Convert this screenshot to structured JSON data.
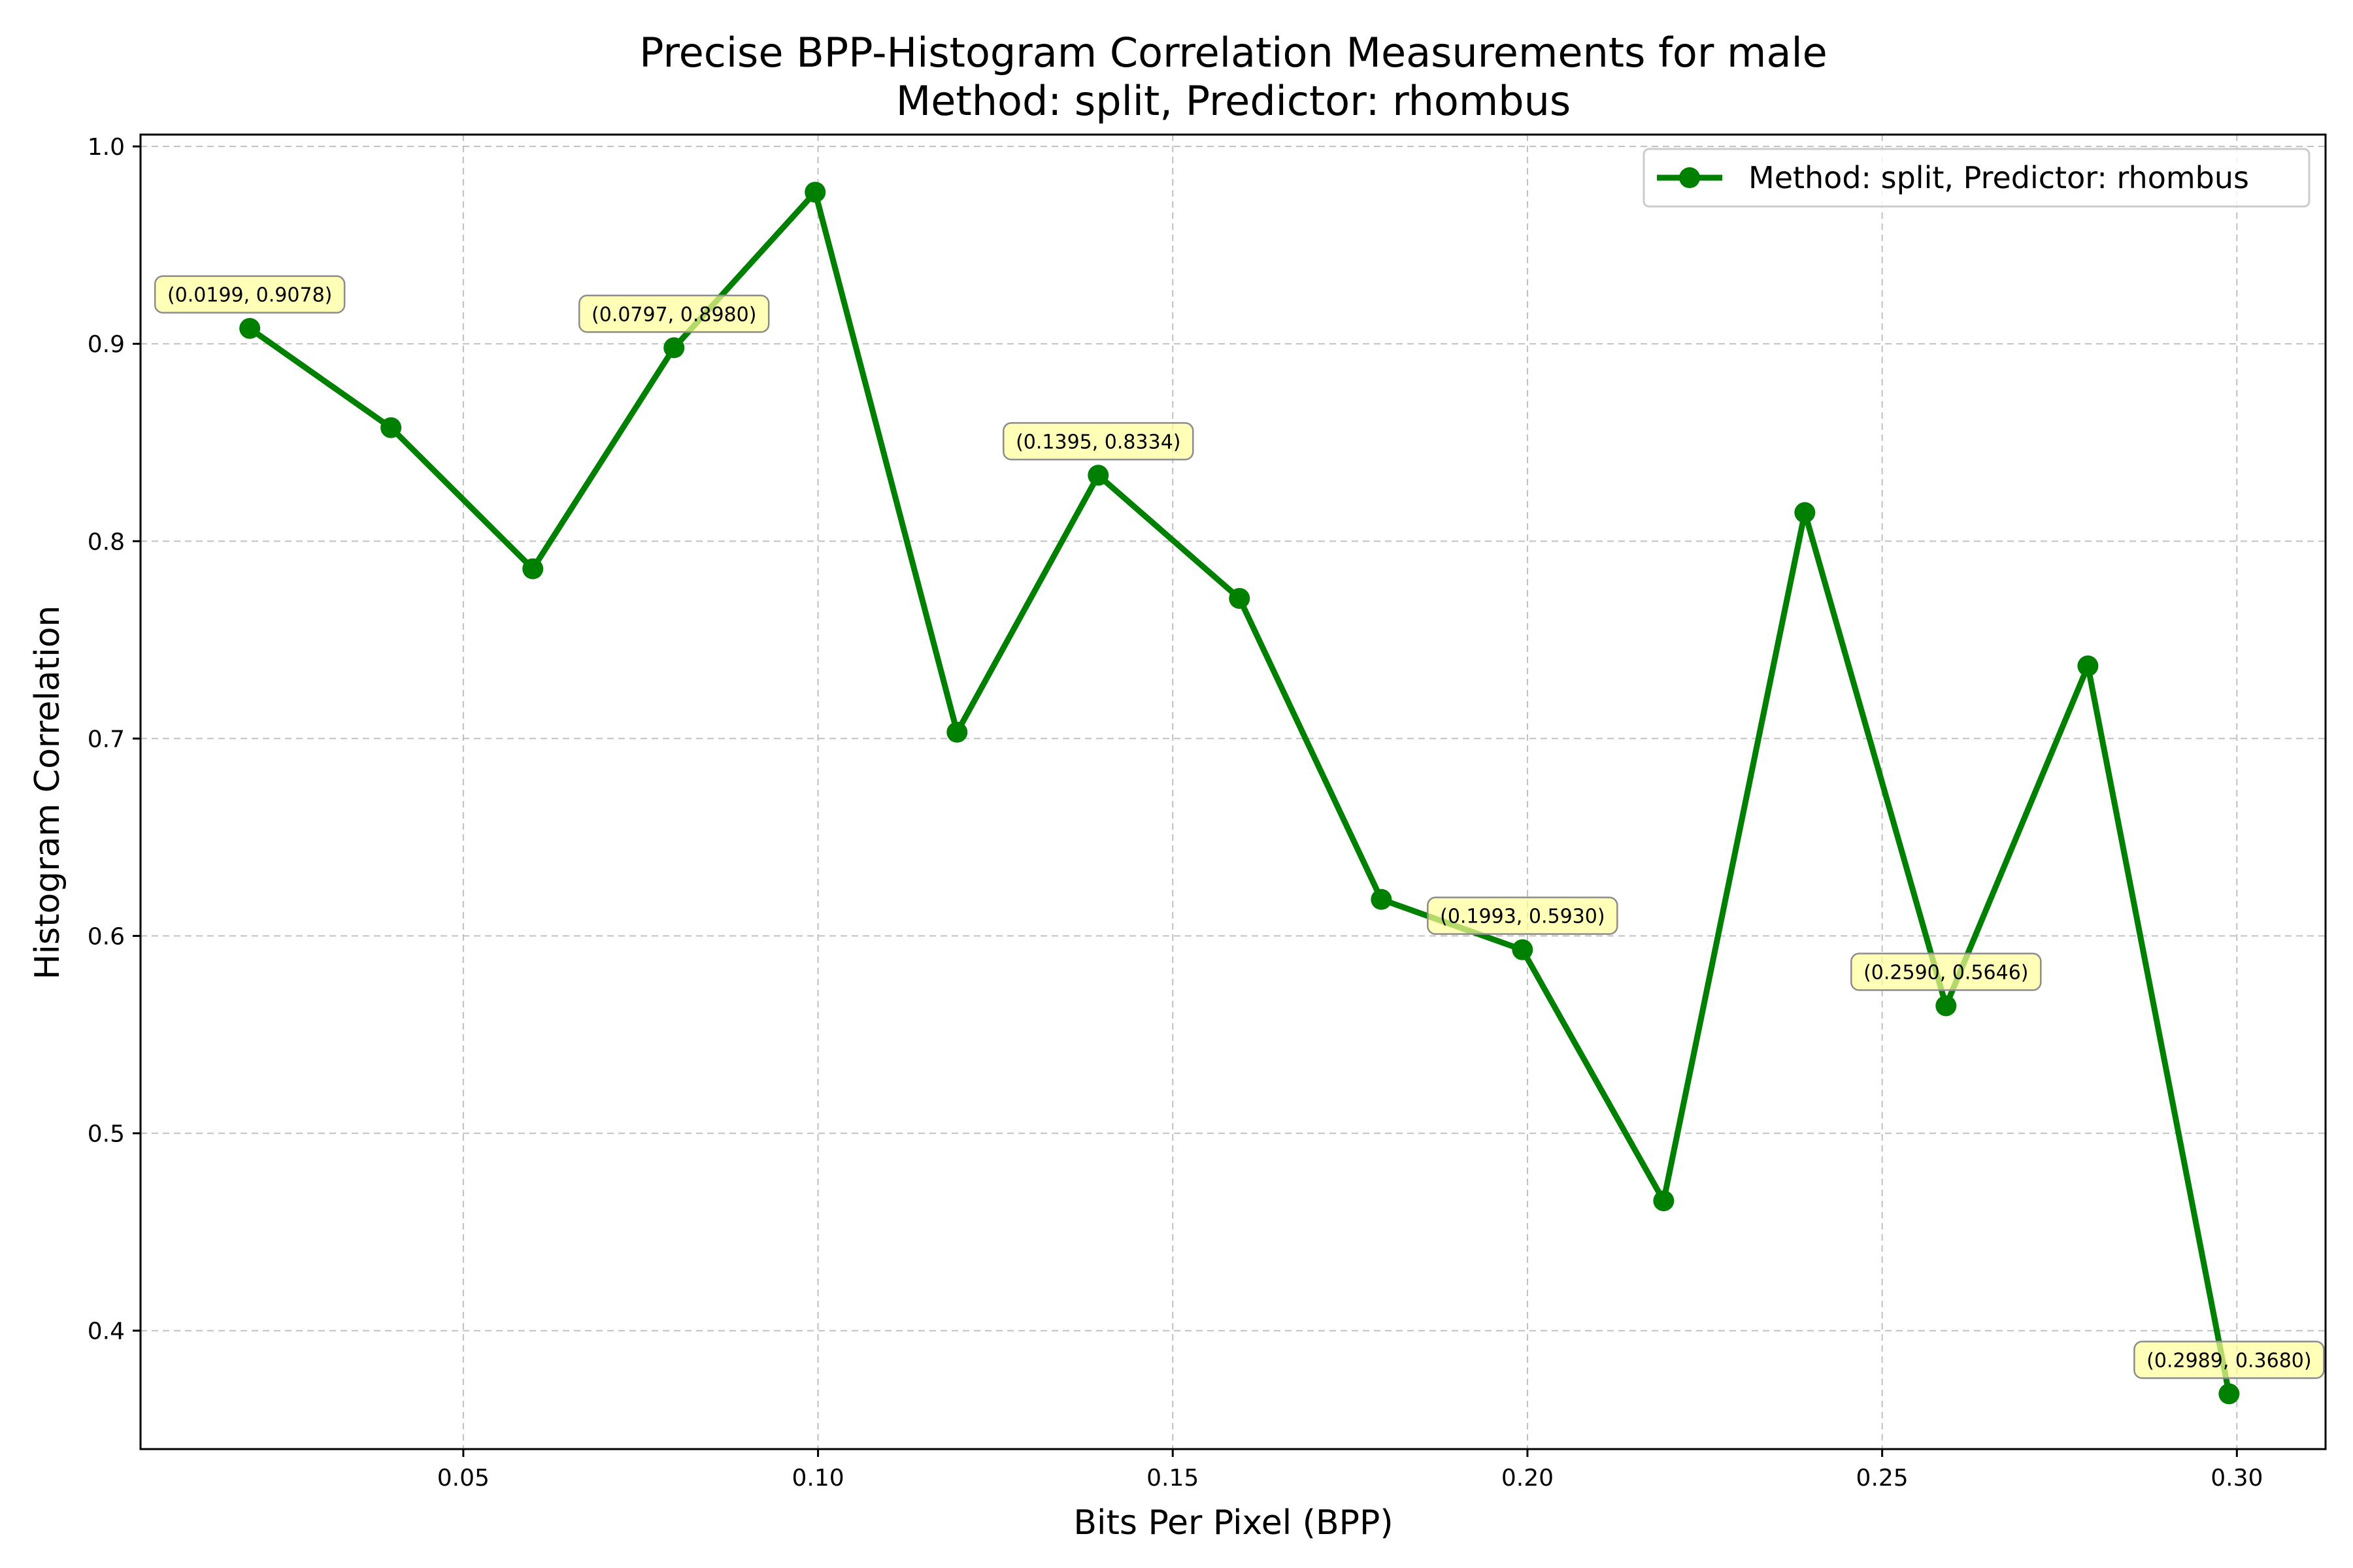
{
  "chart_data": {
    "type": "line",
    "title": "Precise BPP-Histogram Correlation Measurements for male",
    "subtitle": "Method: split, Predictor: rhombus",
    "xlabel": "Bits Per Pixel (BPP)",
    "ylabel": "Histogram Correlation",
    "xlim": [
      0.0045,
      0.3125
    ],
    "ylim": [
      0.34,
      1.006
    ],
    "x_ticks": [
      0.05,
      0.1,
      0.15,
      0.2,
      0.25,
      0.3
    ],
    "x_tick_labels": [
      "0.05",
      "0.10",
      "0.15",
      "0.20",
      "0.25",
      "0.30"
    ],
    "y_ticks": [
      0.4,
      0.5,
      0.6,
      0.7,
      0.8,
      0.9,
      1.0
    ],
    "y_tick_labels": [
      "0.4",
      "0.5",
      "0.6",
      "0.7",
      "0.8",
      "0.9",
      "1.0"
    ],
    "grid": true,
    "legend_position": "top-right",
    "series": [
      {
        "name": "Method: split, Predictor: rhombus",
        "color": "#008000",
        "x": [
          0.0199,
          0.0398,
          0.0598,
          0.0797,
          0.0996,
          0.1196,
          0.1395,
          0.1594,
          0.1794,
          0.1993,
          0.2192,
          0.2391,
          0.259,
          0.279,
          0.2989
        ],
        "y": [
          0.9078,
          0.8575,
          0.786,
          0.898,
          0.9768,
          0.7032,
          0.8334,
          0.771,
          0.6185,
          0.593,
          0.4658,
          0.8145,
          0.5646,
          0.7368,
          0.368
        ]
      }
    ],
    "annotations": [
      {
        "x": 0.0199,
        "y": 0.9078,
        "text": "(0.0199, 0.9078)"
      },
      {
        "x": 0.0797,
        "y": 0.898,
        "text": "(0.0797, 0.8980)"
      },
      {
        "x": 0.1395,
        "y": 0.8334,
        "text": "(0.1395, 0.8334)"
      },
      {
        "x": 0.1993,
        "y": 0.593,
        "text": "(0.1993, 0.5930)"
      },
      {
        "x": 0.259,
        "y": 0.5646,
        "text": "(0.2590, 0.5646)"
      },
      {
        "x": 0.2989,
        "y": 0.368,
        "text": "(0.2989, 0.3680)"
      }
    ],
    "annotation_color": "#ffff99"
  }
}
